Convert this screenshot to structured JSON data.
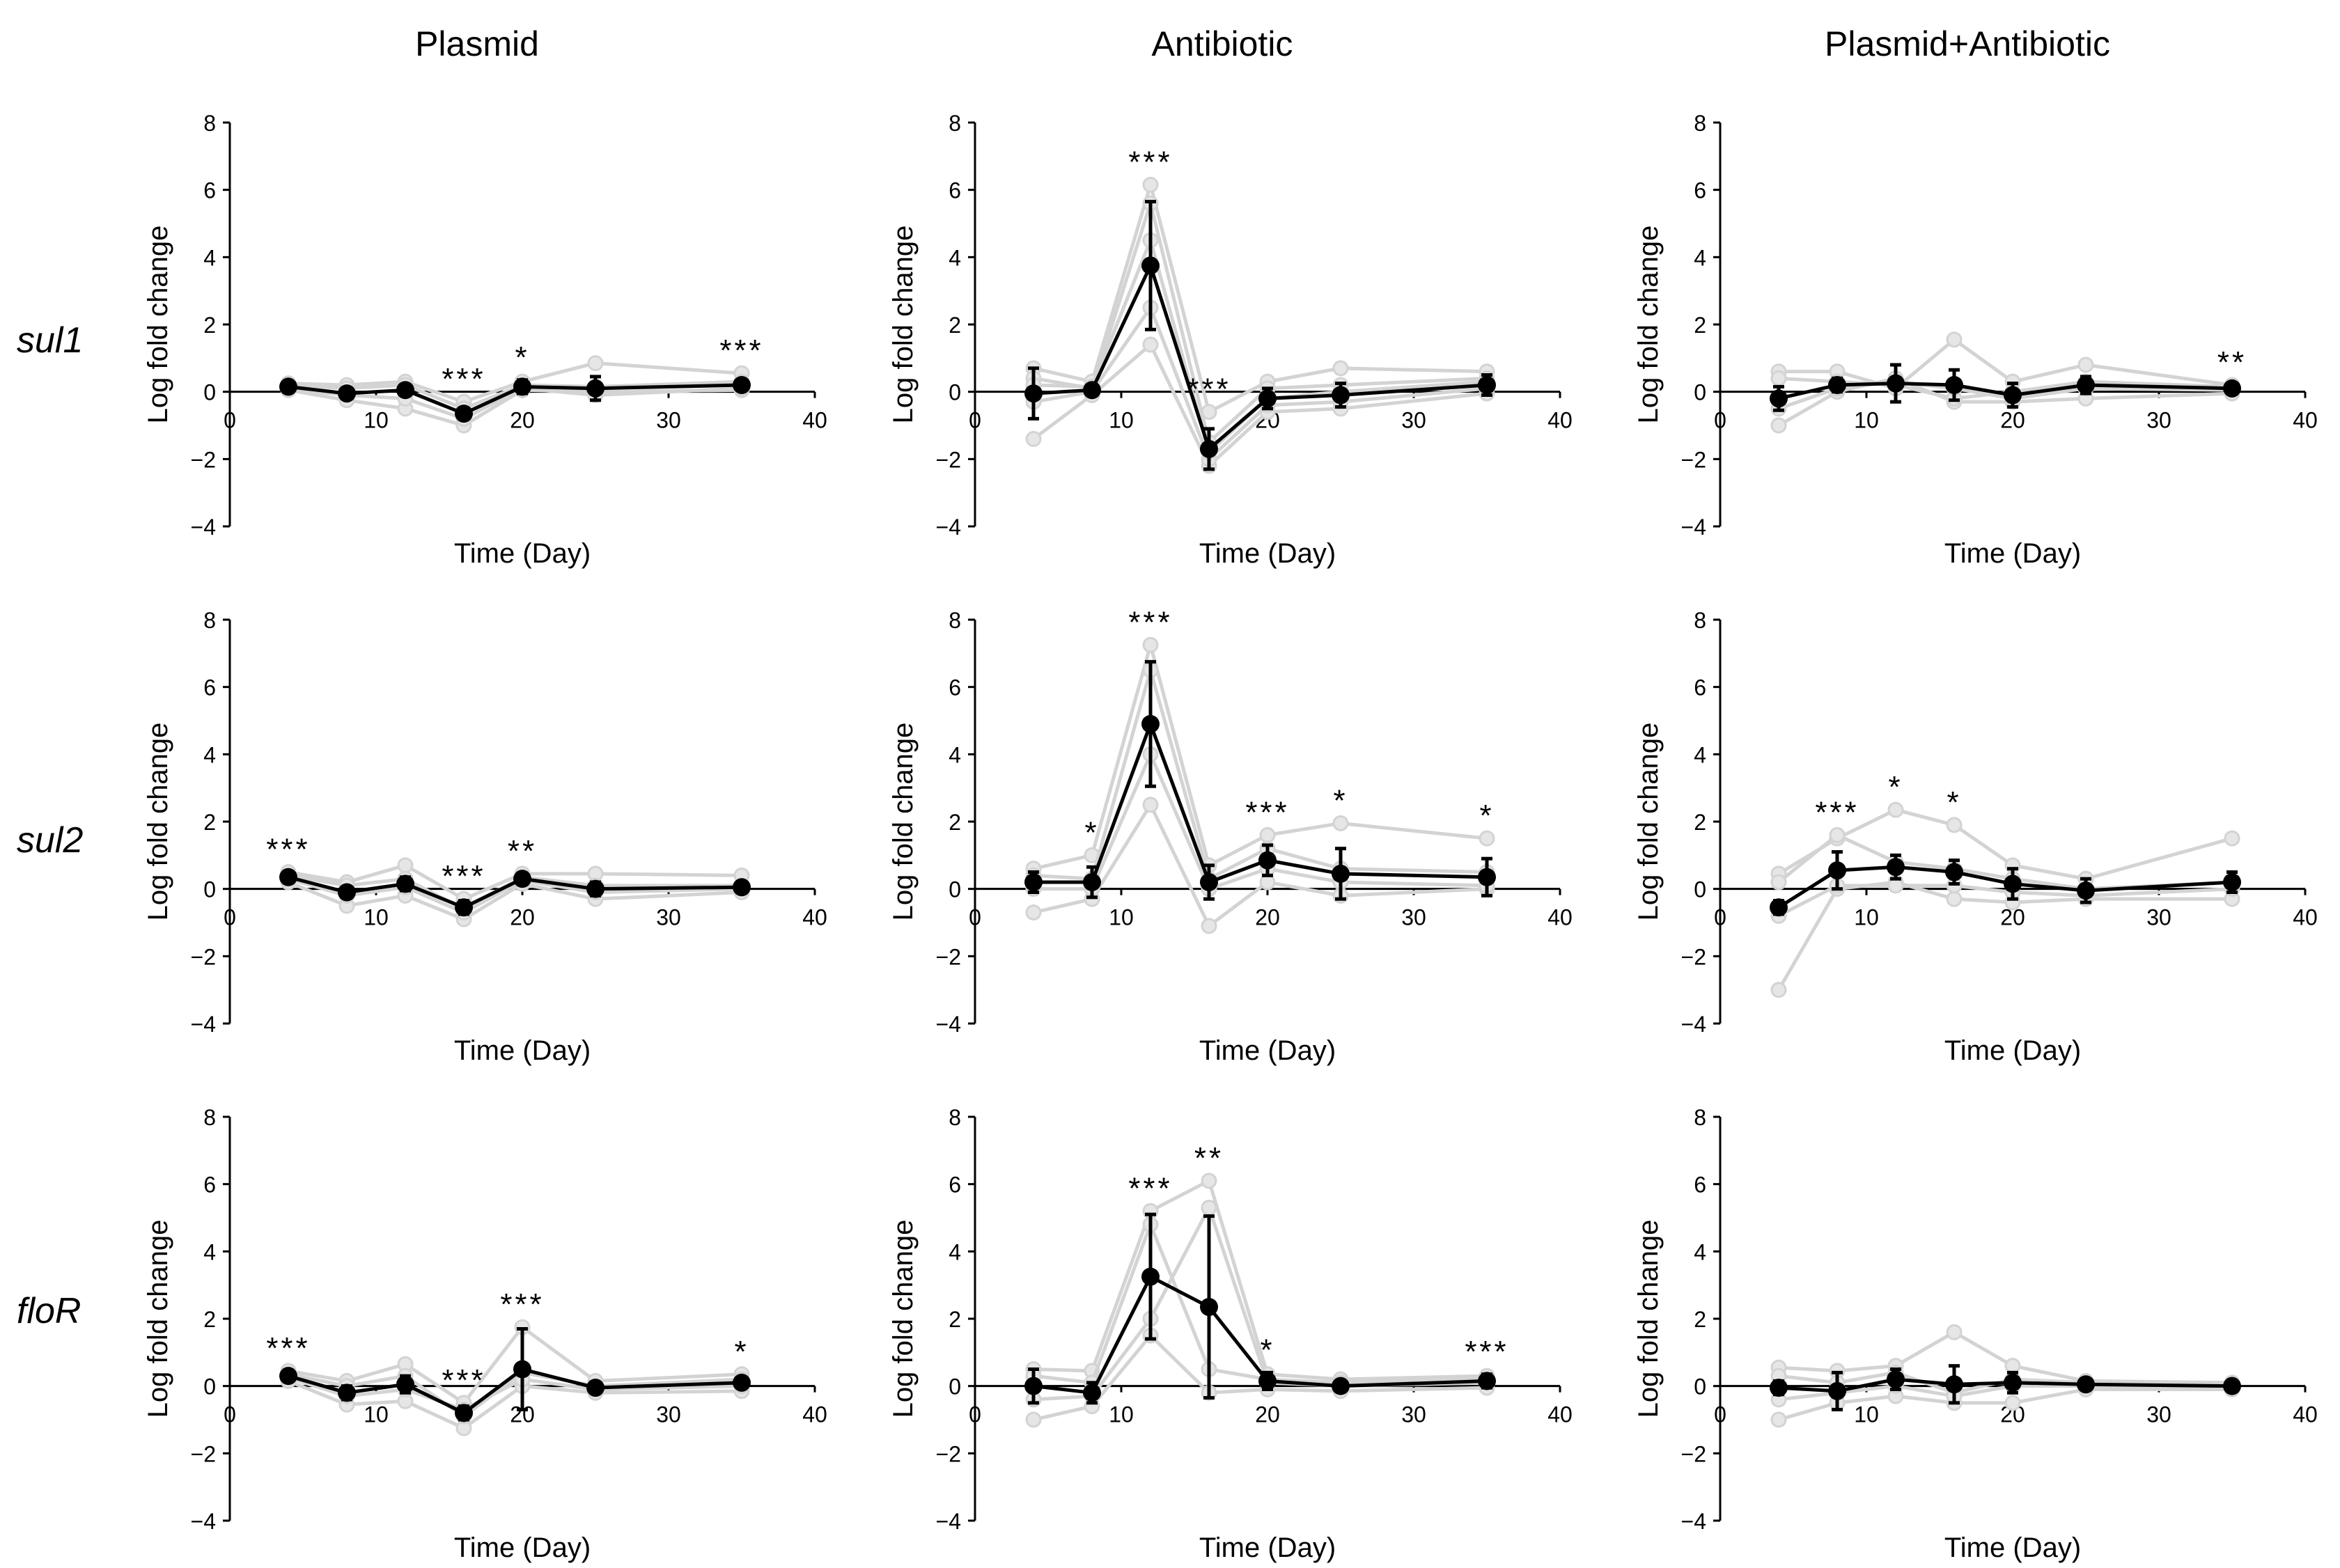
{
  "column_titles": [
    "Plasmid",
    "Antibiotic",
    "Plasmid+Antibiotic"
  ],
  "row_labels": [
    "sul1",
    "sul2",
    "floR"
  ],
  "colors": {
    "mean": "#000000",
    "replicate": "#d3d3d3",
    "axis": "#000000"
  },
  "chart_data": [
    {
      "type": "line",
      "row": "sul1",
      "column": "Plasmid",
      "xlabel": "Time (Day)",
      "ylabel": "Log fold change",
      "xlim": [
        0,
        40
      ],
      "ylim": [
        -4,
        8
      ],
      "xticks": [
        0,
        10,
        20,
        30,
        40
      ],
      "yticks": [
        -4,
        -2,
        0,
        2,
        4,
        6,
        8
      ],
      "x": [
        4,
        8,
        12,
        16,
        20,
        25,
        35
      ],
      "series": [
        {
          "name": "mean",
          "values": [
            0.15,
            -0.05,
            0.05,
            -0.65,
            0.15,
            0.1,
            0.2
          ]
        }
      ],
      "error_bars": [
        0.1,
        0.1,
        0.15,
        0.15,
        0.2,
        0.35,
        0.1
      ],
      "replicates": [
        [
          0.25,
          0.2,
          0.3,
          -0.3,
          0.3,
          0.85,
          0.55
        ],
        [
          0.05,
          -0.25,
          -0.5,
          -1.0,
          0.05,
          0.0,
          0.05
        ],
        [
          0.2,
          0.1,
          0.2,
          -0.5,
          0.2,
          0.15,
          0.3
        ],
        [
          0.1,
          -0.1,
          -0.2,
          -0.8,
          0.1,
          -0.1,
          0.1
        ]
      ],
      "annotations": [
        {
          "x": 16,
          "label": "***"
        },
        {
          "x": 20,
          "label": "*"
        },
        {
          "x": 35,
          "label": "***"
        }
      ]
    },
    {
      "type": "line",
      "row": "sul1",
      "column": "Antibiotic",
      "xlabel": "Time (Day)",
      "ylabel": "Log fold change",
      "xlim": [
        0,
        40
      ],
      "ylim": [
        -4,
        8
      ],
      "xticks": [
        0,
        10,
        20,
        30,
        40
      ],
      "yticks": [
        -4,
        -2,
        0,
        2,
        4,
        6,
        8
      ],
      "x": [
        4,
        8,
        12,
        16,
        20,
        25,
        35
      ],
      "series": [
        {
          "name": "mean",
          "values": [
            -0.05,
            0.05,
            3.75,
            -1.7,
            -0.2,
            -0.1,
            0.2
          ]
        }
      ],
      "error_bars": [
        0.75,
        0.1,
        1.9,
        0.6,
        0.3,
        0.35,
        0.3
      ],
      "replicates": [
        [
          0.7,
          0.3,
          6.15,
          -0.6,
          0.3,
          0.7,
          0.6
        ],
        [
          -1.4,
          -0.1,
          1.4,
          -2.2,
          -0.6,
          -0.5,
          -0.05
        ],
        [
          0.4,
          0.1,
          5.6,
          -1.5,
          0.1,
          0.2,
          0.4
        ],
        [
          -0.3,
          0.0,
          2.5,
          -2.0,
          -0.4,
          -0.3,
          0.1
        ],
        [
          0.2,
          0.15,
          4.5,
          -1.8,
          -0.2,
          0.0,
          0.3
        ]
      ],
      "annotations": [
        {
          "x": 12,
          "label": "***"
        },
        {
          "x": 16,
          "label": "***"
        }
      ]
    },
    {
      "type": "line",
      "row": "sul1",
      "column": "Plasmid+Antibiotic",
      "xlabel": "Time (Day)",
      "ylabel": "Log fold change",
      "xlim": [
        0,
        40
      ],
      "ylim": [
        -4,
        8
      ],
      "xticks": [
        0,
        10,
        20,
        30,
        40
      ],
      "yticks": [
        -4,
        -2,
        0,
        2,
        4,
        6,
        8
      ],
      "x": [
        4,
        8,
        12,
        16,
        20,
        25,
        35
      ],
      "series": [
        {
          "name": "mean",
          "values": [
            -0.2,
            0.2,
            0.25,
            0.2,
            -0.1,
            0.2,
            0.1
          ]
        }
      ],
      "error_bars": [
        0.35,
        0.2,
        0.55,
        0.45,
        0.35,
        0.25,
        0.1
      ],
      "replicates": [
        [
          0.6,
          0.6,
          0.1,
          1.55,
          0.3,
          0.8,
          0.2
        ],
        [
          -1.0,
          0.0,
          0.4,
          -0.3,
          -0.3,
          -0.2,
          -0.05
        ],
        [
          0.4,
          0.3,
          0.2,
          -0.2,
          0.0,
          0.3,
          0.15
        ],
        [
          -0.5,
          0.1,
          0.3,
          0.1,
          -0.2,
          0.1,
          0.05
        ]
      ],
      "annotations": [
        {
          "x": 35,
          "label": "**"
        }
      ]
    },
    {
      "type": "line",
      "row": "sul2",
      "column": "Plasmid",
      "xlabel": "Time (Day)",
      "ylabel": "Log fold change",
      "xlim": [
        0,
        40
      ],
      "ylim": [
        -4,
        8
      ],
      "xticks": [
        0,
        10,
        20,
        30,
        40
      ],
      "yticks": [
        -4,
        -2,
        0,
        2,
        4,
        6,
        8
      ],
      "x": [
        4,
        8,
        12,
        16,
        20,
        25,
        35
      ],
      "series": [
        {
          "name": "mean",
          "values": [
            0.35,
            -0.1,
            0.15,
            -0.55,
            0.3,
            0.0,
            0.05
          ]
        }
      ],
      "error_bars": [
        0.1,
        0.15,
        0.2,
        0.2,
        0.15,
        0.2,
        0.1
      ],
      "replicates": [
        [
          0.5,
          0.2,
          0.7,
          -0.3,
          0.45,
          0.45,
          0.4
        ],
        [
          0.2,
          -0.5,
          -0.2,
          -0.9,
          0.15,
          -0.3,
          -0.1
        ],
        [
          0.4,
          0.1,
          0.3,
          -0.6,
          0.35,
          0.1,
          0.1
        ],
        [
          0.3,
          -0.2,
          0.05,
          -0.7,
          0.25,
          -0.1,
          0.0
        ]
      ],
      "annotations": [
        {
          "x": 4,
          "label": "***"
        },
        {
          "x": 16,
          "label": "***"
        },
        {
          "x": 20,
          "label": "**"
        }
      ]
    },
    {
      "type": "line",
      "row": "sul2",
      "column": "Antibiotic",
      "xlabel": "Time (Day)",
      "ylabel": "Log fold change",
      "xlim": [
        0,
        40
      ],
      "ylim": [
        -4,
        8
      ],
      "xticks": [
        0,
        10,
        20,
        30,
        40
      ],
      "yticks": [
        -4,
        -2,
        0,
        2,
        4,
        6,
        8
      ],
      "x": [
        4,
        8,
        12,
        16,
        20,
        25,
        35
      ],
      "series": [
        {
          "name": "mean",
          "values": [
            0.2,
            0.2,
            4.9,
            0.2,
            0.85,
            0.45,
            0.35
          ]
        }
      ],
      "error_bars": [
        0.3,
        0.45,
        1.85,
        0.5,
        0.45,
        0.75,
        0.55
      ],
      "replicates": [
        [
          0.6,
          1.0,
          7.25,
          0.7,
          1.6,
          1.95,
          1.5
        ],
        [
          -0.7,
          -0.3,
          2.5,
          -1.1,
          0.2,
          -0.2,
          0.0
        ],
        [
          0.4,
          0.3,
          6.5,
          0.3,
          1.2,
          0.6,
          0.5
        ],
        [
          0.0,
          0.0,
          4.0,
          0.0,
          0.6,
          0.2,
          0.1
        ]
      ],
      "annotations": [
        {
          "x": 8,
          "label": "*"
        },
        {
          "x": 12,
          "label": "***"
        },
        {
          "x": 20,
          "label": "***"
        },
        {
          "x": 25,
          "label": "*"
        },
        {
          "x": 35,
          "label": "*"
        }
      ]
    },
    {
      "type": "line",
      "row": "sul2",
      "column": "Plasmid+Antibiotic",
      "xlabel": "Time (Day)",
      "ylabel": "Log fold change",
      "xlim": [
        0,
        40
      ],
      "ylim": [
        -4,
        8
      ],
      "xticks": [
        0,
        10,
        20,
        30,
        40
      ],
      "yticks": [
        -4,
        -2,
        0,
        2,
        4,
        6,
        8
      ],
      "x": [
        4,
        8,
        12,
        16,
        20,
        25,
        35
      ],
      "series": [
        {
          "name": "mean",
          "values": [
            -0.55,
            0.55,
            0.65,
            0.5,
            0.15,
            -0.05,
            0.2
          ]
        }
      ],
      "error_bars": [
        0.2,
        0.55,
        0.35,
        0.35,
        0.45,
        0.35,
        0.3
      ],
      "replicates": [
        [
          0.45,
          1.5,
          2.35,
          1.9,
          0.7,
          0.3,
          1.5
        ],
        [
          -3.0,
          0.0,
          0.2,
          -0.3,
          -0.4,
          -0.3,
          -0.3
        ],
        [
          0.2,
          1.6,
          0.8,
          0.6,
          0.3,
          0.0,
          0.2
        ],
        [
          -0.8,
          0.1,
          0.1,
          0.1,
          -0.1,
          -0.2,
          0.0
        ]
      ],
      "annotations": [
        {
          "x": 8,
          "label": "***"
        },
        {
          "x": 12,
          "label": "*"
        },
        {
          "x": 16,
          "label": "*"
        }
      ]
    },
    {
      "type": "line",
      "row": "floR",
      "column": "Plasmid",
      "xlabel": "Time (Day)",
      "ylabel": "Log fold change",
      "xlim": [
        0,
        40
      ],
      "ylim": [
        -4,
        8
      ],
      "xticks": [
        0,
        10,
        20,
        30,
        40
      ],
      "yticks": [
        -4,
        -2,
        0,
        2,
        4,
        6,
        8
      ],
      "x": [
        4,
        8,
        12,
        16,
        20,
        25,
        35
      ],
      "series": [
        {
          "name": "mean",
          "values": [
            0.3,
            -0.2,
            0.05,
            -0.8,
            0.5,
            -0.05,
            0.1
          ]
        }
      ],
      "error_bars": [
        0.1,
        0.2,
        0.25,
        0.2,
        1.2,
        0.15,
        0.1
      ],
      "replicates": [
        [
          0.45,
          0.15,
          0.65,
          -0.5,
          1.75,
          0.15,
          0.35
        ],
        [
          0.15,
          -0.55,
          -0.45,
          -1.25,
          0.0,
          -0.2,
          -0.15
        ],
        [
          0.35,
          0.0,
          0.3,
          -0.9,
          0.4,
          0.0,
          0.2
        ],
        [
          0.25,
          -0.3,
          -0.1,
          -0.7,
          0.2,
          -0.1,
          0.0
        ]
      ],
      "annotations": [
        {
          "x": 4,
          "label": "***"
        },
        {
          "x": 16,
          "label": "***"
        },
        {
          "x": 20,
          "label": "***"
        },
        {
          "x": 35,
          "label": "*"
        }
      ]
    },
    {
      "type": "line",
      "row": "floR",
      "column": "Antibiotic",
      "xlabel": "Time (Day)",
      "ylabel": "Log fold change",
      "xlim": [
        0,
        40
      ],
      "ylim": [
        -4,
        8
      ],
      "xticks": [
        0,
        10,
        20,
        30,
        40
      ],
      "yticks": [
        -4,
        -2,
        0,
        2,
        4,
        6,
        8
      ],
      "x": [
        4,
        8,
        12,
        16,
        20,
        25,
        35
      ],
      "series": [
        {
          "name": "mean",
          "values": [
            0.0,
            -0.2,
            3.25,
            2.35,
            0.15,
            0.0,
            0.15
          ]
        }
      ],
      "error_bars": [
        0.5,
        0.3,
        1.85,
        2.7,
        0.25,
        0.15,
        0.2
      ],
      "replicates": [
        [
          0.5,
          0.45,
          5.2,
          6.1,
          0.35,
          0.2,
          0.3
        ],
        [
          -1.0,
          -0.6,
          1.5,
          -0.2,
          -0.1,
          -0.15,
          -0.05
        ],
        [
          0.3,
          0.1,
          4.8,
          0.5,
          0.2,
          0.1,
          0.2
        ],
        [
          -0.4,
          -0.3,
          2.0,
          5.3,
          0.1,
          0.0,
          0.1
        ]
      ],
      "annotations": [
        {
          "x": 12,
          "label": "***"
        },
        {
          "x": 16,
          "label": "**"
        },
        {
          "x": 20,
          "label": "*"
        },
        {
          "x": 35,
          "label": "***"
        }
      ]
    },
    {
      "type": "line",
      "row": "floR",
      "column": "Plasmid+Antibiotic",
      "xlabel": "Time (Day)",
      "ylabel": "Log fold change",
      "xlim": [
        0,
        40
      ],
      "ylim": [
        -4,
        8
      ],
      "xticks": [
        0,
        10,
        20,
        30,
        40
      ],
      "yticks": [
        -4,
        -2,
        0,
        2,
        4,
        6,
        8
      ],
      "x": [
        4,
        8,
        12,
        16,
        20,
        25,
        35
      ],
      "series": [
        {
          "name": "mean",
          "values": [
            -0.05,
            -0.15,
            0.2,
            0.05,
            0.1,
            0.05,
            0.0
          ]
        }
      ],
      "error_bars": [
        0.2,
        0.55,
        0.3,
        0.55,
        0.3,
        0.15,
        0.1
      ],
      "replicates": [
        [
          0.55,
          0.45,
          0.6,
          1.6,
          0.6,
          0.15,
          0.1
        ],
        [
          -1.0,
          -0.5,
          -0.3,
          -0.5,
          -0.5,
          -0.1,
          -0.1
        ],
        [
          0.3,
          0.1,
          0.4,
          -0.2,
          0.2,
          0.1,
          0.05
        ],
        [
          -0.4,
          -0.2,
          0.0,
          -0.3,
          0.0,
          0.0,
          -0.05
        ]
      ],
      "annotations": []
    }
  ]
}
